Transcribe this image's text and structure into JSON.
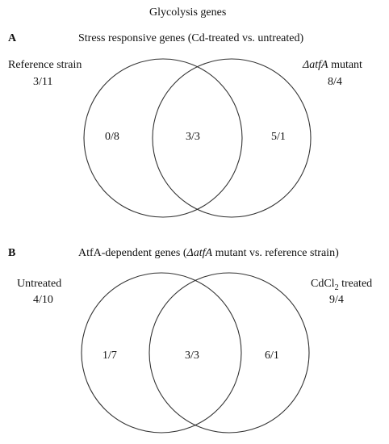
{
  "title": "Glycolysis genes",
  "panel_a": {
    "letter": "A",
    "heading": "Stress responsive genes (Cd-treated vs. untreated)",
    "left_set": {
      "label": "Reference strain",
      "total": "3/11",
      "only": "0/8"
    },
    "right_set": {
      "label_prefix": "ΔatfA",
      "label_suffix": " mutant",
      "total": "8/4",
      "only": "5/1"
    },
    "overlap": "3/3"
  },
  "panel_b": {
    "letter": "B",
    "heading_pre": "AtfA-dependent genes (",
    "heading_italic": "ΔatfA",
    "heading_post": " mutant vs. reference strain)",
    "left_set": {
      "label": "Untreated",
      "total": "4/10",
      "only": "1/7"
    },
    "right_set": {
      "label_main": "CdCl",
      "label_sub": "2",
      "label_suffix": " treated",
      "total": "9/4",
      "only": "6/1"
    },
    "overlap": "3/3"
  }
}
